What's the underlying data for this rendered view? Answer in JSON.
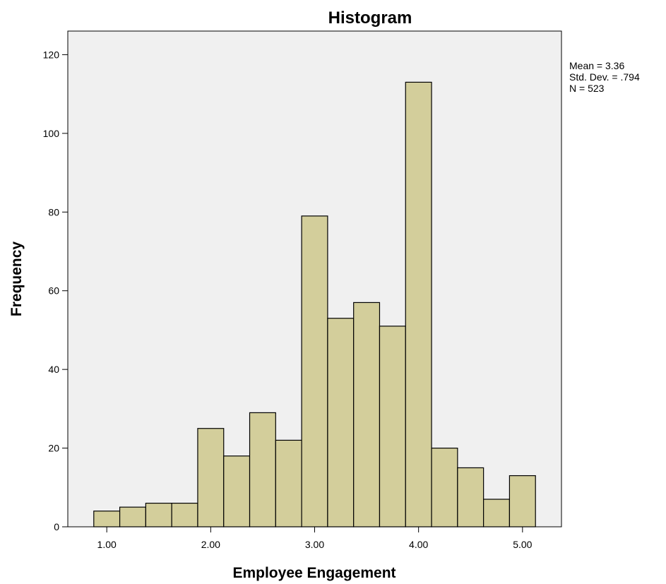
{
  "chart_data": {
    "type": "bar",
    "title": "Histogram",
    "xlabel": "Employee Engagement",
    "ylabel": "Frequency",
    "x_ticks": [
      "1.00",
      "2.00",
      "3.00",
      "4.00",
      "5.00"
    ],
    "x_tick_values": [
      1,
      2,
      3,
      4,
      5
    ],
    "y_ticks": [
      "0",
      "20",
      "40",
      "60",
      "80",
      "100",
      "120"
    ],
    "y_tick_values": [
      0,
      20,
      40,
      60,
      80,
      100,
      120
    ],
    "xlim": [
      0.625,
      5.375
    ],
    "ylim": [
      0,
      126
    ],
    "bin_edges": [
      0.875,
      1.125,
      1.375,
      1.625,
      1.875,
      2.125,
      2.375,
      2.625,
      2.875,
      3.125,
      3.375,
      3.625,
      3.875,
      4.125,
      4.375,
      4.625,
      4.875,
      5.125
    ],
    "values": [
      4,
      5,
      6,
      6,
      25,
      18,
      29,
      22,
      79,
      53,
      57,
      51,
      113,
      20,
      15,
      7,
      13
    ],
    "grid": false,
    "legend": "none",
    "bar_color": "#d3ce9b",
    "plot_background": "#f0f0f0",
    "stats": [
      "Mean = 3.36",
      "Std. Dev. = .794",
      "N = 523"
    ]
  }
}
